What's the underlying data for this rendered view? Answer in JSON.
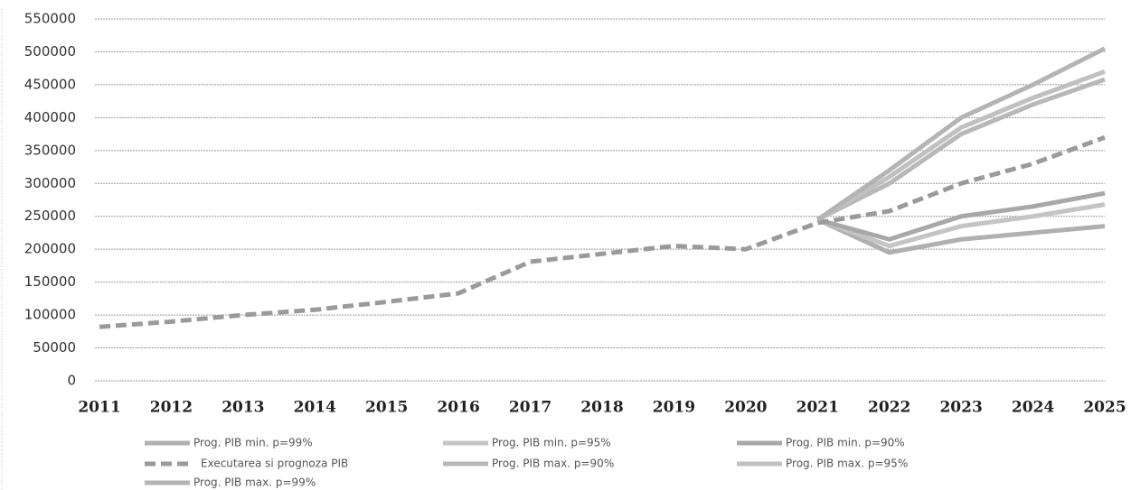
{
  "chart_data": {
    "type": "line",
    "x": [
      2011,
      2012,
      2013,
      2014,
      2015,
      2016,
      2017,
      2018,
      2019,
      2020,
      2021,
      2022,
      2023,
      2024,
      2025
    ],
    "xlim": [
      2011,
      2025
    ],
    "xticks": [
      2011,
      2012,
      2013,
      2014,
      2015,
      2016,
      2017,
      2018,
      2019,
      2020,
      2021,
      2022,
      2023,
      2024,
      2025
    ],
    "ylim": [
      0,
      550000
    ],
    "yticks": [
      0,
      50000,
      100000,
      150000,
      200000,
      250000,
      300000,
      350000,
      400000,
      450000,
      500000,
      550000
    ],
    "grid": true,
    "legend": "bottom",
    "series": [
      {
        "name": "Prog. PIB min. p=99%",
        "color": "#b0b0b0",
        "dashed": false,
        "values": [
          null,
          null,
          null,
          null,
          null,
          null,
          null,
          null,
          null,
          null,
          245000,
          195000,
          215000,
          225000,
          235000
        ]
      },
      {
        "name": "Prog. PIB min. p=95%",
        "color": "#c4c4c4",
        "dashed": false,
        "values": [
          null,
          null,
          null,
          null,
          null,
          null,
          null,
          null,
          null,
          null,
          245000,
          205000,
          235000,
          250000,
          268000
        ]
      },
      {
        "name": "Prog. PIB min. p=90%",
        "color": "#a8a8a8",
        "dashed": false,
        "values": [
          null,
          null,
          null,
          null,
          null,
          null,
          null,
          null,
          null,
          null,
          245000,
          215000,
          250000,
          265000,
          285000
        ]
      },
      {
        "name": "Executarea si prognoza PIB",
        "color": "#9a9a9a",
        "dashed": true,
        "values": [
          82000,
          90000,
          100000,
          108000,
          120000,
          133000,
          181000,
          193000,
          205000,
          200000,
          240000,
          258000,
          300000,
          330000,
          370000
        ]
      },
      {
        "name": "Prog. PIB max. p=90%",
        "color": "#b8b8b8",
        "dashed": false,
        "values": [
          null,
          null,
          null,
          null,
          null,
          null,
          null,
          null,
          null,
          null,
          245000,
          300000,
          375000,
          420000,
          458000
        ]
      },
      {
        "name": "Prog. PIB max. p=95%",
        "color": "#c0c0c0",
        "dashed": false,
        "values": [
          null,
          null,
          null,
          null,
          null,
          null,
          null,
          null,
          null,
          null,
          245000,
          310000,
          385000,
          430000,
          470000
        ]
      },
      {
        "name": "Prog. PIB max. p=99%",
        "color": "#b4b4b4",
        "dashed": false,
        "values": [
          null,
          null,
          null,
          null,
          null,
          null,
          null,
          null,
          null,
          null,
          245000,
          320000,
          400000,
          450000,
          505000
        ]
      }
    ]
  }
}
